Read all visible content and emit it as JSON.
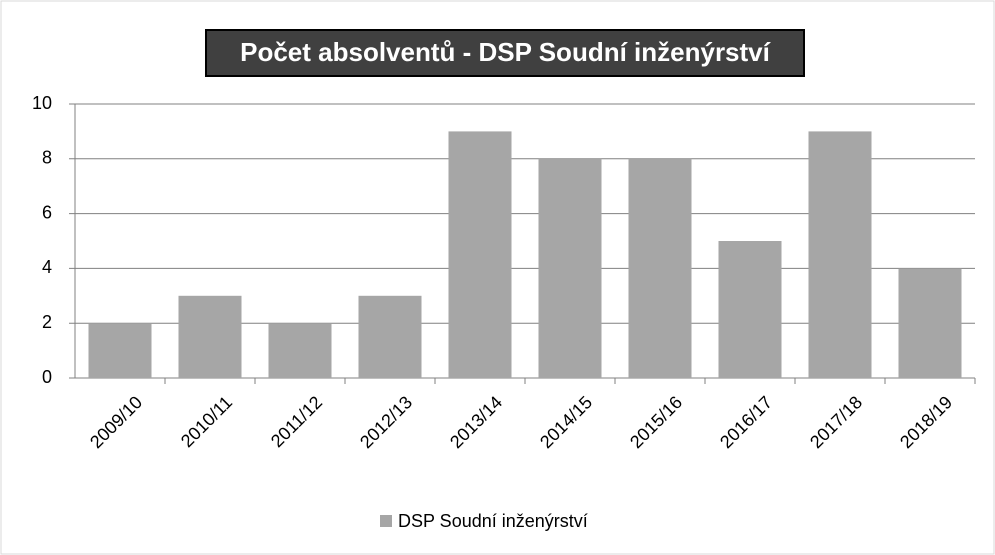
{
  "chart_data": {
    "type": "bar",
    "title": "Počet absolventů - DSP Soudní inženýrství",
    "categories": [
      "2009/10",
      "2010/11",
      "2011/12",
      "2012/13",
      "2013/14",
      "2014/15",
      "2015/16",
      "2016/17",
      "2017/18",
      "2018/19"
    ],
    "series": [
      {
        "name": "DSP Soudní inženýrství",
        "color": "#a6a6a6",
        "values": [
          2,
          3,
          2,
          3,
          9,
          8,
          8,
          5,
          9,
          4
        ]
      }
    ],
    "ylim": [
      0,
      10
    ],
    "yticks": [
      0,
      2,
      4,
      6,
      8,
      10
    ],
    "grid": true,
    "legend": "bottom"
  }
}
